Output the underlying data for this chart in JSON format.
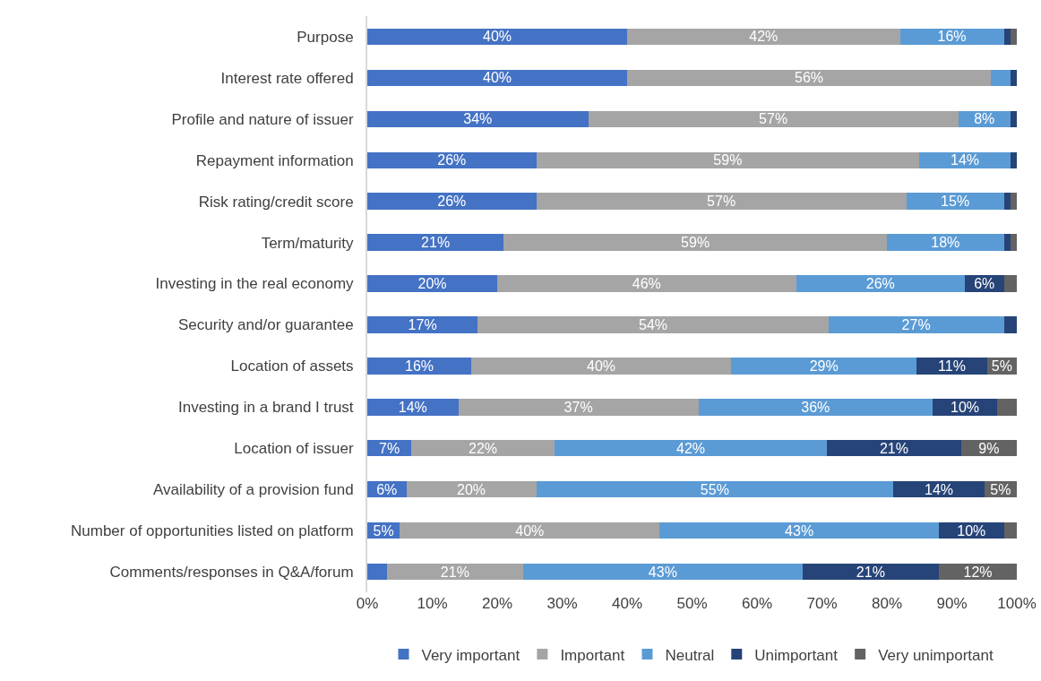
{
  "chart_data": {
    "type": "bar",
    "orientation": "horizontal",
    "stacked": true,
    "categories": [
      "Purpose",
      "Interest rate offered",
      "Profile and nature of issuer",
      "Repayment information",
      "Risk rating/credit score",
      "Term/maturity",
      "Investing in the real economy",
      "Security and/or guarantee",
      "Location of assets",
      "Investing in a brand I trust",
      "Location of issuer",
      "Availability of a provision fund",
      "Number of opportunities listed on platform",
      "Comments/responses in Q&A/forum"
    ],
    "series": [
      {
        "name": "Very important",
        "color": "#4472c4",
        "values": [
          40,
          40,
          34,
          26,
          26,
          21,
          20,
          17,
          16,
          14,
          6.8,
          6,
          5,
          3
        ],
        "value_labels": [
          "40%",
          "40%",
          "34%",
          "26%",
          "26%",
          "21%",
          "20%",
          "17%",
          "16%",
          "14%",
          "7%",
          "6%",
          "5%",
          null
        ]
      },
      {
        "name": "Important",
        "color": "#a5a5a5",
        "values": [
          42,
          56,
          57,
          59,
          57,
          59,
          46,
          54,
          40,
          37,
          22,
          20,
          40,
          21
        ],
        "value_labels": [
          "42%",
          "56%",
          "57%",
          "59%",
          "57%",
          "59%",
          "46%",
          "54%",
          "40%",
          "37%",
          "22%",
          "20%",
          "40%",
          "21%"
        ]
      },
      {
        "name": "Neutral",
        "color": "#5b9bd5",
        "values": [
          16,
          3,
          8,
          14,
          15,
          18,
          26,
          27,
          28.6,
          36,
          42,
          55,
          43,
          43
        ],
        "value_labels": [
          "16%",
          null,
          "8%",
          "14%",
          "15%",
          "18%",
          "26%",
          "27%",
          "29%",
          "36%",
          "42%",
          "55%",
          "43%",
          "43%"
        ]
      },
      {
        "name": "Unimportant",
        "color": "#264478",
        "values": [
          1,
          1,
          1,
          1,
          1,
          1,
          6,
          2,
          10.8,
          10,
          20.6,
          14,
          10,
          21
        ],
        "value_labels": [
          null,
          null,
          null,
          null,
          null,
          null,
          "6%",
          null,
          "11%",
          "10%",
          "21%",
          "14%",
          "10%",
          "21%"
        ]
      },
      {
        "name": "Very unimportant",
        "color": "#636363",
        "values": [
          1,
          0,
          0,
          0,
          1,
          1,
          2,
          0,
          4.6,
          3,
          8.6,
          5,
          2,
          12
        ],
        "value_labels": [
          null,
          null,
          null,
          null,
          null,
          null,
          null,
          null,
          "5%",
          null,
          "9%",
          "5%",
          null,
          "12%"
        ]
      }
    ],
    "xlim": [
      0,
      100
    ],
    "xticks": [
      {
        "value": 0,
        "label": "0%"
      },
      {
        "value": 10,
        "label": "10%"
      },
      {
        "value": 20,
        "label": "20%"
      },
      {
        "value": 30,
        "label": "30%"
      },
      {
        "value": 40,
        "label": "40%"
      },
      {
        "value": 50,
        "label": "50%"
      },
      {
        "value": 60,
        "label": "60%"
      },
      {
        "value": 70,
        "label": "70%"
      },
      {
        "value": 80,
        "label": "80%"
      },
      {
        "value": 90,
        "label": "90%"
      },
      {
        "value": 100,
        "label": "100%"
      }
    ],
    "grid": false,
    "legend": "bottom"
  }
}
